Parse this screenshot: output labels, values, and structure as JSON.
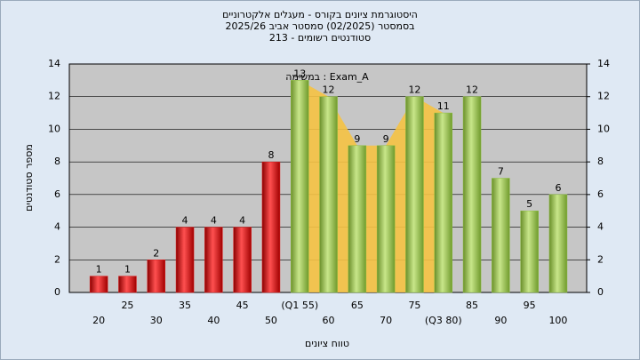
{
  "chart_data": {
    "type": "bar",
    "title": [
      "היסטוגרמת ציונים בקורס - מעגלים אלקטרוניים",
      "בסמסטר  (02/2025)  סמסטר אביב 2025/26",
      "סטודנטים רשומים - 213"
    ],
    "annotation": "במשימה : Exam_A",
    "x_label": "טווח ציונים",
    "y_label": "מספר סטודנטים",
    "categories": [
      "20",
      "25",
      "30",
      "35",
      "40",
      "45",
      "50",
      "(Q1 55)",
      "60",
      "65",
      "70",
      "75",
      "(Q3 80)",
      "85",
      "90",
      "95",
      "100"
    ],
    "values": [
      1,
      1,
      2,
      4,
      4,
      4,
      8,
      13,
      12,
      9,
      9,
      12,
      11,
      12,
      7,
      5,
      6
    ],
    "colors": [
      "#e02020",
      "#e02020",
      "#e02020",
      "#e02020",
      "#e02020",
      "#e02020",
      "#e02020",
      "#8cbf3f",
      "#8cbf3f",
      "#8cbf3f",
      "#8cbf3f",
      "#8cbf3f",
      "#8cbf3f",
      "#8cbf3f",
      "#8cbf3f",
      "#8cbf3f",
      "#8cbf3f"
    ],
    "ylim": [
      0,
      14
    ],
    "yticks": [
      0,
      2,
      4,
      6,
      8,
      10,
      12,
      14
    ],
    "y2lim": [
      0,
      14
    ],
    "y2ticks": [
      0,
      2,
      4,
      6,
      8,
      10,
      12,
      14
    ],
    "grid": true
  }
}
